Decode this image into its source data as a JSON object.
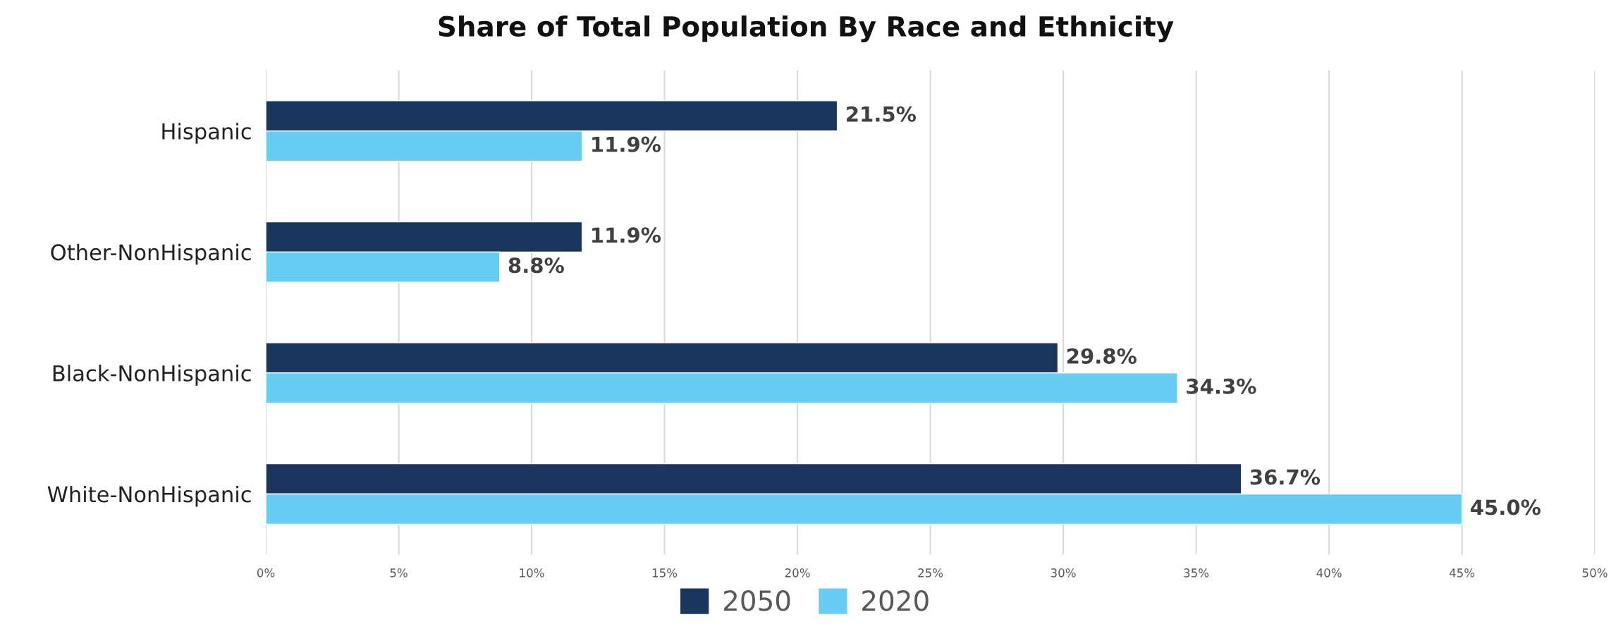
{
  "chart_data": {
    "type": "bar",
    "orientation": "horizontal",
    "title": "Share of Total Population By Race and Ethnicity",
    "categories": [
      "Hispanic",
      "Other-NonHispanic",
      "Black-NonHispanic",
      "White-NonHispanic"
    ],
    "series": [
      {
        "name": "2050",
        "color": "#1a365d",
        "values": [
          21.5,
          11.9,
          29.8,
          36.7
        ],
        "value_labels": [
          "21.5%",
          "11.9%",
          "29.8%",
          "36.7%"
        ]
      },
      {
        "name": "2020",
        "color": "#68cdf3",
        "values": [
          11.9,
          8.8,
          34.3,
          45.0
        ],
        "value_labels": [
          "11.9%",
          "8.8%",
          "34.3%",
          "45.0%"
        ]
      }
    ],
    "xlim": [
      0,
      50
    ],
    "xticks": [
      {
        "value": 0,
        "label": "0%"
      },
      {
        "value": 5,
        "label": "5%"
      },
      {
        "value": 10,
        "label": "10%"
      },
      {
        "value": 15,
        "label": "15%"
      },
      {
        "value": 20,
        "label": "20%"
      },
      {
        "value": 25,
        "label": "25%"
      },
      {
        "value": 30,
        "label": "30%"
      },
      {
        "value": 35,
        "label": "35%"
      },
      {
        "value": 40,
        "label": "40%"
      },
      {
        "value": 45,
        "label": "45%"
      },
      {
        "value": 50,
        "label": "50%"
      }
    ],
    "grid": "x",
    "legend": "bottom"
  }
}
